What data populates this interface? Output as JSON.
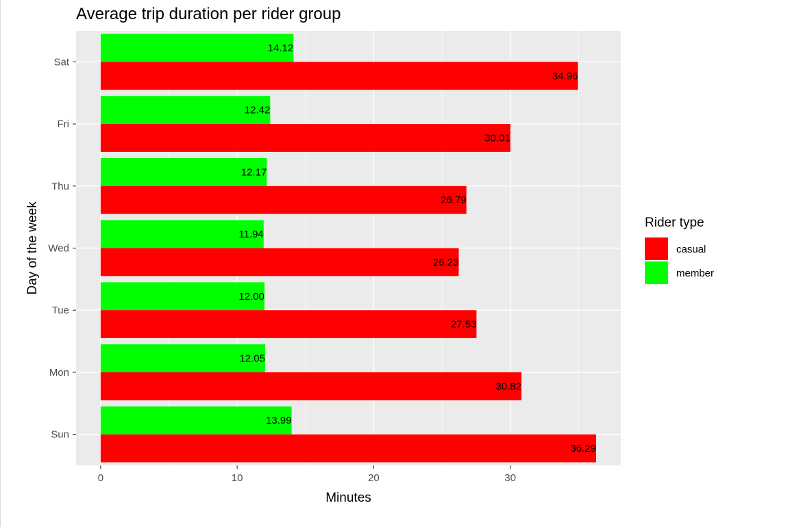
{
  "chart_data": {
    "type": "bar",
    "orientation": "horizontal",
    "title": "Average trip duration per rider group",
    "xlabel": "Minutes",
    "ylabel": "Day of the week",
    "categories": [
      "Sun",
      "Mon",
      "Tue",
      "Wed",
      "Thu",
      "Fri",
      "Sat"
    ],
    "series": [
      {
        "name": "casual",
        "color": "#ff0000",
        "values": [
          36.29,
          30.82,
          27.53,
          26.23,
          26.79,
          30.01,
          34.96
        ],
        "labels": [
          "36.29",
          "30.82",
          "27.53",
          "26.23",
          "26.79",
          "30.01",
          "34.96"
        ]
      },
      {
        "name": "member",
        "color": "#00ff00",
        "values": [
          13.99,
          12.05,
          12.0,
          11.94,
          12.17,
          12.42,
          14.12
        ],
        "labels": [
          "13.99",
          "12.05",
          "12.00",
          "11.94",
          "12.17",
          "12.42",
          "14.12"
        ]
      }
    ],
    "xlim": [
      -1.8,
      38.1
    ],
    "xticks": [
      0,
      10,
      20,
      30
    ],
    "legend": {
      "title": "Rider type",
      "position": "right"
    },
    "grid": true,
    "panel_background": "#ebebeb"
  }
}
